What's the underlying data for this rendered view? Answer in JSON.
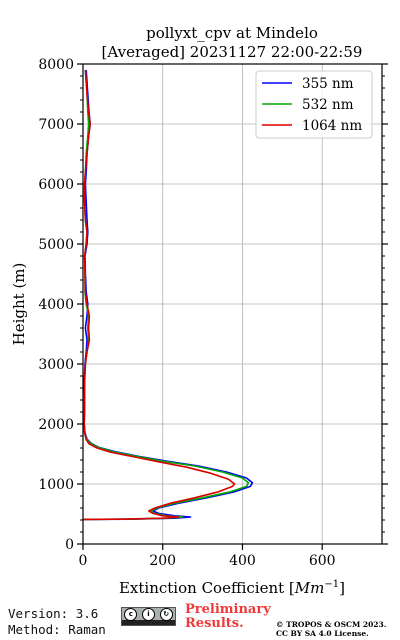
{
  "chart_data": {
    "type": "line",
    "title_line1": "pollyxt_cpv at Mindelo",
    "title_line2": "[Averaged] 20231127 22:00-22:59",
    "xlabel_prefix": "Extinction Coefficient [",
    "xlabel_unit": "Mm",
    "xlabel_exp": "−1",
    "xlabel_suffix": "]",
    "ylabel": "Height (m)",
    "xlim": [
      0,
      750
    ],
    "ylim": [
      0,
      8000
    ],
    "x_ticks": [
      "0",
      "200",
      "400",
      "600"
    ],
    "y_ticks": [
      "0",
      "1000",
      "2000",
      "3000",
      "4000",
      "5000",
      "6000",
      "7000",
      "8000"
    ],
    "grid": true,
    "legend_position": "top-right",
    "series": [
      {
        "name": "355 nm",
        "color": "#0000ff",
        "points": [
          [
            0,
            410
          ],
          [
            130,
            415
          ],
          [
            230,
            430
          ],
          [
            270,
            450
          ],
          [
            230,
            470
          ],
          [
            190,
            510
          ],
          [
            175,
            550
          ],
          [
            190,
            600
          ],
          [
            240,
            680
          ],
          [
            310,
            770
          ],
          [
            380,
            870
          ],
          [
            420,
            960
          ],
          [
            425,
            1020
          ],
          [
            410,
            1100
          ],
          [
            360,
            1200
          ],
          [
            290,
            1300
          ],
          [
            210,
            1380
          ],
          [
            140,
            1460
          ],
          [
            80,
            1540
          ],
          [
            40,
            1610
          ],
          [
            20,
            1680
          ],
          [
            10,
            1750
          ],
          [
            5,
            1850
          ],
          [
            3,
            2000
          ],
          [
            4,
            2300
          ],
          [
            3,
            2700
          ],
          [
            5,
            3000
          ],
          [
            8,
            3200
          ],
          [
            10,
            3400
          ],
          [
            6,
            3600
          ],
          [
            10,
            3800
          ],
          [
            12,
            4000
          ],
          [
            8,
            4200
          ],
          [
            6,
            4500
          ],
          [
            5,
            4800
          ],
          [
            10,
            5000
          ],
          [
            12,
            5200
          ],
          [
            10,
            5400
          ],
          [
            8,
            5700
          ],
          [
            6,
            6000
          ],
          [
            8,
            6200
          ],
          [
            10,
            6500
          ],
          [
            14,
            6800
          ],
          [
            18,
            7000
          ],
          [
            15,
            7200
          ],
          [
            12,
            7500
          ],
          [
            10,
            7700
          ],
          [
            8,
            7900
          ]
        ]
      },
      {
        "name": "532 nm",
        "color": "#00aa00",
        "points": [
          [
            0,
            410
          ],
          [
            120,
            415
          ],
          [
            210,
            430
          ],
          [
            250,
            450
          ],
          [
            210,
            470
          ],
          [
            180,
            510
          ],
          [
            170,
            550
          ],
          [
            185,
            600
          ],
          [
            230,
            680
          ],
          [
            300,
            770
          ],
          [
            370,
            870
          ],
          [
            410,
            960
          ],
          [
            415,
            1020
          ],
          [
            400,
            1100
          ],
          [
            350,
            1200
          ],
          [
            280,
            1300
          ],
          [
            200,
            1380
          ],
          [
            135,
            1460
          ],
          [
            75,
            1540
          ],
          [
            38,
            1610
          ],
          [
            18,
            1680
          ],
          [
            9,
            1750
          ],
          [
            4,
            1850
          ],
          [
            3,
            2000
          ],
          [
            4,
            2300
          ],
          [
            4,
            2700
          ],
          [
            6,
            3000
          ],
          [
            10,
            3200
          ],
          [
            14,
            3400
          ],
          [
            12,
            3600
          ],
          [
            14,
            3800
          ],
          [
            8,
            4000
          ],
          [
            5,
            4200
          ],
          [
            5,
            4500
          ],
          [
            4,
            4800
          ],
          [
            8,
            5000
          ],
          [
            10,
            5200
          ],
          [
            6,
            5400
          ],
          [
            4,
            5700
          ],
          [
            4,
            6000
          ],
          [
            6,
            6200
          ],
          [
            8,
            6500
          ],
          [
            12,
            6800
          ],
          [
            14,
            7000
          ],
          [
            12,
            7200
          ],
          [
            10,
            7500
          ],
          [
            8,
            7700
          ],
          [
            6,
            7900
          ]
        ]
      },
      {
        "name": "1064 nm",
        "color": "#dd0000",
        "points": [
          [
            0,
            410
          ],
          [
            110,
            415
          ],
          [
            200,
            430
          ],
          [
            240,
            450
          ],
          [
            200,
            470
          ],
          [
            175,
            510
          ],
          [
            165,
            550
          ],
          [
            180,
            600
          ],
          [
            220,
            680
          ],
          [
            280,
            770
          ],
          [
            340,
            870
          ],
          [
            375,
            960
          ],
          [
            380,
            1000
          ],
          [
            365,
            1080
          ],
          [
            320,
            1180
          ],
          [
            260,
            1280
          ],
          [
            190,
            1370
          ],
          [
            130,
            1450
          ],
          [
            70,
            1530
          ],
          [
            35,
            1600
          ],
          [
            15,
            1670
          ],
          [
            8,
            1740
          ],
          [
            4,
            1850
          ],
          [
            3,
            2000
          ],
          [
            4,
            2300
          ],
          [
            4,
            2700
          ],
          [
            6,
            3000
          ],
          [
            10,
            3200
          ],
          [
            16,
            3400
          ],
          [
            14,
            3600
          ],
          [
            16,
            3800
          ],
          [
            10,
            4000
          ],
          [
            6,
            4200
          ],
          [
            5,
            4500
          ],
          [
            4,
            4800
          ],
          [
            8,
            5000
          ],
          [
            10,
            5200
          ],
          [
            6,
            5400
          ],
          [
            4,
            5700
          ],
          [
            4,
            6000
          ],
          [
            6,
            6200
          ],
          [
            10,
            6500
          ],
          [
            14,
            6800
          ],
          [
            18,
            7000
          ],
          [
            14,
            7200
          ],
          [
            10,
            7500
          ],
          [
            8,
            7700
          ],
          [
            6,
            7900
          ]
        ]
      }
    ]
  },
  "footer": {
    "version": "Version: 3.6",
    "method": "Method: Raman",
    "preliminary_line1": "Preliminary",
    "preliminary_line2": "Results.",
    "copyright_line1": "© TROPOS & OSCM 2023.",
    "copyright_line2": "CC BY SA 4.0 License.",
    "cc_badge": {
      "symbols": [
        "cc",
        "by",
        "sa"
      ],
      "background": "#aab0ad"
    }
  }
}
